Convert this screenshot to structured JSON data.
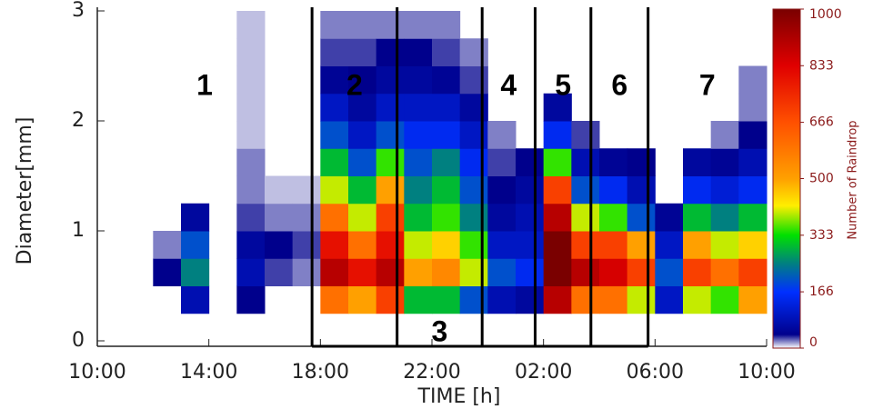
{
  "chart_data": {
    "type": "heatmap",
    "xlabel": "TIME [h]",
    "ylabel": "Diameter[mm]",
    "xlim": [
      0,
      24
    ],
    "xticks": [
      {
        "value": 0,
        "label": "10:00"
      },
      {
        "value": 4,
        "label": "14:00"
      },
      {
        "value": 8,
        "label": "18:00"
      },
      {
        "value": 12,
        "label": "22:00"
      },
      {
        "value": 16,
        "label": "02:00"
      },
      {
        "value": 20,
        "label": "06:00"
      },
      {
        "value": 24,
        "label": "10:00"
      }
    ],
    "ylim": [
      0,
      3
    ],
    "yticks": [
      0,
      1,
      2,
      3
    ],
    "x_bins": [
      0,
      1,
      2,
      3,
      4,
      5,
      6,
      7,
      8,
      9,
      10,
      11,
      12,
      13,
      14,
      15,
      16,
      17,
      18,
      19,
      20,
      21,
      22,
      23,
      24
    ],
    "y_bins": [
      0.25,
      0.5,
      0.75,
      1,
      1.25,
      1.5,
      1.75,
      2,
      2.25,
      2.5,
      2.75,
      3
    ],
    "z": [
      [
        null,
        null,
        null,
        null,
        null,
        null,
        null,
        null,
        null,
        null,
        null
      ],
      [
        null,
        null,
        null,
        null,
        null,
        null,
        null,
        null,
        null,
        null,
        null
      ],
      [
        null,
        40,
        20,
        null,
        null,
        null,
        null,
        null,
        null,
        null,
        null
      ],
      [
        80,
        250,
        200,
        60,
        null,
        null,
        null,
        null,
        null,
        null,
        null
      ],
      [
        null,
        null,
        null,
        null,
        null,
        null,
        null,
        null,
        null,
        null,
        null
      ],
      [
        40,
        80,
        60,
        30,
        20,
        20,
        10,
        10,
        10,
        10,
        10
      ],
      [
        null,
        30,
        40,
        20,
        10,
        null,
        null,
        null,
        null,
        null,
        null
      ],
      [
        null,
        20,
        30,
        20,
        10,
        null,
        null,
        null,
        null,
        null,
        null
      ],
      [
        600,
        900,
        800,
        600,
        400,
        300,
        200,
        100,
        50,
        30,
        20
      ],
      [
        500,
        800,
        600,
        400,
        300,
        200,
        100,
        60,
        40,
        30,
        20
      ],
      [
        700,
        900,
        800,
        700,
        500,
        350,
        200,
        100,
        60,
        40,
        20
      ],
      [
        300,
        500,
        400,
        300,
        250,
        200,
        150,
        100,
        60,
        40,
        20
      ],
      [
        300,
        550,
        450,
        350,
        300,
        250,
        150,
        100,
        50,
        30,
        20
      ],
      [
        200,
        400,
        350,
        250,
        200,
        150,
        100,
        60,
        30,
        20,
        null
      ],
      [
        80,
        200,
        100,
        60,
        40,
        30,
        20,
        null,
        null,
        null,
        null
      ],
      [
        60,
        150,
        100,
        80,
        60,
        40,
        null,
        null,
        null,
        null,
        null
      ],
      [
        900,
        1000,
        1000,
        900,
        700,
        350,
        150,
        60,
        null,
        null,
        null
      ],
      [
        600,
        900,
        700,
        400,
        200,
        80,
        30,
        null,
        null,
        null,
        null
      ],
      [
        600,
        850,
        700,
        350,
        150,
        50,
        null,
        null,
        null,
        null,
        null
      ],
      [
        400,
        700,
        500,
        200,
        80,
        40,
        null,
        null,
        null,
        null,
        null
      ],
      [
        100,
        200,
        100,
        50,
        null,
        null,
        null,
        null,
        null,
        null,
        null
      ],
      [
        400,
        700,
        500,
        300,
        150,
        60,
        null,
        null,
        null,
        null,
        null
      ],
      [
        350,
        600,
        400,
        250,
        120,
        50,
        20,
        null,
        null,
        null,
        null
      ],
      [
        500,
        700,
        450,
        300,
        150,
        80,
        40,
        20,
        20,
        null,
        null
      ]
    ],
    "zlim": [
      0,
      1000
    ],
    "zticks": [
      0,
      166,
      333,
      500,
      666,
      833,
      1000
    ],
    "zlabel": "Number of Raindrop",
    "colorscale": [
      {
        "value": 0,
        "color": "#ffffff"
      },
      {
        "value": 40,
        "color": "#00008c"
      },
      {
        "value": 166,
        "color": "#0030ff"
      },
      {
        "value": 250,
        "color": "#008080"
      },
      {
        "value": 333,
        "color": "#00e000"
      },
      {
        "value": 420,
        "color": "#ffee00"
      },
      {
        "value": 500,
        "color": "#ffa000"
      },
      {
        "value": 666,
        "color": "#ff5000"
      },
      {
        "value": 833,
        "color": "#e00000"
      },
      {
        "value": 1000,
        "color": "#7a0000"
      }
    ],
    "boundaries": [
      7.7,
      10.75,
      13.8,
      15.7,
      17.7,
      19.75
    ],
    "segment_labels": [
      "1",
      "2",
      "3",
      "4",
      "5",
      "6",
      "7"
    ]
  }
}
